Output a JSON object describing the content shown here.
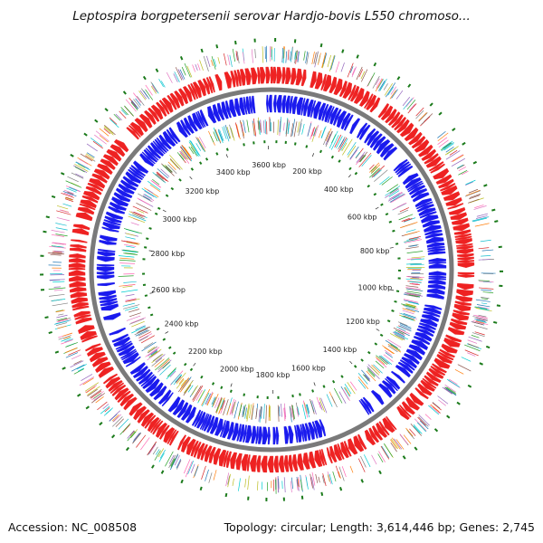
{
  "header": {
    "title": "Leptospira borgpetersenii serovar Hardjo-bovis L550 chromoso..."
  },
  "footer": {
    "accession": "Accession: NC_008508",
    "summary": "Topology: circular; Length: 3,614,446 bp; Genes: 2,745"
  },
  "genome": {
    "length_bp": 3614446,
    "gene_count": 2745,
    "topology": "circular"
  },
  "tick_labels": [
    "200 kbp",
    "400 kbp",
    "600 kbp",
    "800 kbp",
    "1000 kbp",
    "1200 kbp",
    "1400 kbp",
    "1600 kbp",
    "1800 kbp",
    "2000 kbp",
    "2200 kbp",
    "2400 kbp",
    "2600 kbp",
    "2800 kbp",
    "3000 kbp",
    "3200 kbp",
    "3400 kbp",
    "3600 kbp"
  ],
  "colors": {
    "forward_strand": "#ee2222",
    "reverse_strand": "#1a1aee",
    "backbone": "#7a7a7a",
    "tick_marks": "#1a7a1a",
    "feature_palette": [
      "#2aa02a",
      "#17becf",
      "#9467bd",
      "#e377c2",
      "#ff7f0e",
      "#8c564b",
      "#1f77b4",
      "#d62728",
      "#bcbd22",
      "#7f7f7f",
      "#ff69b4",
      "#00ced1"
    ]
  },
  "tracks": [
    {
      "name": "outer-feature-ticks",
      "color": "#1a7a1a"
    },
    {
      "name": "outer-colored-features"
    },
    {
      "name": "forward-cds",
      "color": "#ee2222"
    },
    {
      "name": "backbone",
      "color": "#7a7a7a"
    },
    {
      "name": "reverse-cds",
      "color": "#1a1aee"
    },
    {
      "name": "inner-colored-features"
    },
    {
      "name": "inner-feature-ticks",
      "color": "#1a7a1a"
    }
  ]
}
